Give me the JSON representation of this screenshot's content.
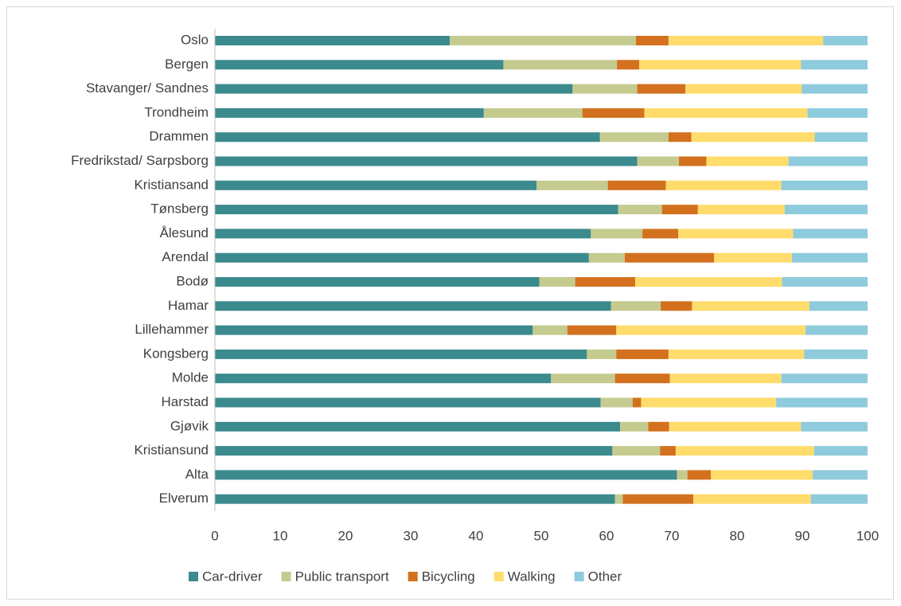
{
  "chart_data": {
    "type": "stacked_bar_horizontal",
    "categories": [
      "Oslo",
      "Bergen",
      "Stavanger/ Sandnes",
      "Trondheim",
      "Drammen",
      "Fredrikstad/ Sarpsborg",
      "Kristiansand",
      "Tønsberg",
      "Ålesund",
      "Arendal",
      "Bodø",
      "Hamar",
      "Lillehammer",
      "Kongsberg",
      "Molde",
      "Harstad",
      "Gjøvik",
      "Kristiansund",
      "Alta",
      "Elverum"
    ],
    "series": [
      {
        "name": "Car-driver",
        "color": "#3b8a8e",
        "values": [
          36,
          44.2,
          54.8,
          41.2,
          59,
          64.7,
          49.3,
          61.8,
          57.6,
          57.3,
          49.7,
          60.7,
          48.7,
          57,
          51.5,
          59.1,
          62.1,
          60.9,
          70.8,
          61.3
        ]
      },
      {
        "name": "Public transport",
        "color": "#c5cb8f",
        "values": [
          28.5,
          17.4,
          9.9,
          15.1,
          10.5,
          6.4,
          10.9,
          6.7,
          7.9,
          5.5,
          5.5,
          7.6,
          5.3,
          4.5,
          9.8,
          4.9,
          4.3,
          7.3,
          1.6,
          1.2
        ]
      },
      {
        "name": "Bicycling",
        "color": "#d3711f",
        "values": [
          5,
          3.4,
          7.4,
          9.5,
          3.5,
          4.2,
          8.9,
          5.5,
          5.5,
          13.7,
          9.2,
          4.8,
          7.5,
          8,
          8.4,
          1.3,
          3.2,
          2.4,
          3.6,
          10.8
        ]
      },
      {
        "name": "Walking",
        "color": "#ffdc6c",
        "values": [
          23.7,
          24.8,
          17.8,
          25,
          18.9,
          12.6,
          17.7,
          13.3,
          17.6,
          11.9,
          22.5,
          18,
          29,
          20.8,
          17.1,
          20.7,
          20.2,
          21.2,
          15.6,
          18
        ]
      },
      {
        "name": "Other",
        "color": "#8ecbdc",
        "values": [
          6.8,
          10.2,
          10.1,
          9.2,
          8.1,
          12.1,
          13.2,
          12.7,
          11.4,
          11.6,
          13.1,
          8.9,
          9.5,
          9.7,
          13.2,
          14,
          10.2,
          8.2,
          8.4,
          8.7
        ]
      }
    ],
    "xlim": [
      0,
      100
    ],
    "xticks": [
      0,
      10,
      20,
      30,
      40,
      50,
      60,
      70,
      80,
      90,
      100
    ],
    "grid": false,
    "legend": "bottom"
  }
}
